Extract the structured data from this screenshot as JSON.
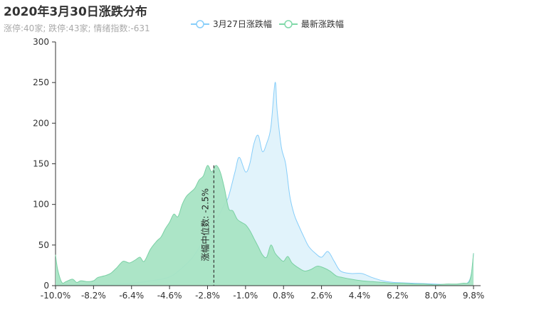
{
  "header": {
    "title": "2020年3月30日涨跌分布",
    "subtitle": "涨停:40家; 跌停:43家; 情绪指数:-631"
  },
  "legend": [
    {
      "label": "3月27日涨跌幅",
      "color": "#87cefa"
    },
    {
      "label": "最新涨跌幅",
      "color": "#7fd8a8"
    }
  ],
  "colors": {
    "prev_line": "#87cefa",
    "prev_fill": "#dff2fb",
    "latest_line": "#7ad0a4",
    "latest_fill": "#a8e4c4",
    "axis": "#333333",
    "median_line": "#333333"
  },
  "annotation": {
    "median_label": "涨幅中位数: -2.5%",
    "median_x": -2.5
  },
  "chart_data": {
    "type": "area",
    "title": "2020年3月30日涨跌分布",
    "xlabel": "",
    "ylabel": "",
    "xlim": [
      -10.0,
      10.0
    ],
    "ylim": [
      0,
      300
    ],
    "x_ticks": [
      "-10.0%",
      "-8.2%",
      "-6.4%",
      "-4.6%",
      "-2.8%",
      "-1.0%",
      "0.8%",
      "2.6%",
      "4.4%",
      "6.2%",
      "8.0%",
      "9.8%"
    ],
    "y_ticks": [
      0,
      50,
      100,
      150,
      200,
      250,
      300
    ],
    "series": [
      {
        "name": "3月27日涨跌幅",
        "x": [
          -10.0,
          -9.5,
          -9.0,
          -8.5,
          -8.0,
          -7.5,
          -7.0,
          -6.5,
          -6.0,
          -5.5,
          -5.0,
          -4.5,
          -4.0,
          -3.5,
          -3.0,
          -2.5,
          -2.0,
          -1.8,
          -1.5,
          -1.3,
          -1.0,
          -0.8,
          -0.6,
          -0.4,
          -0.2,
          0.0,
          0.2,
          0.4,
          0.5,
          0.7,
          0.9,
          1.1,
          1.3,
          1.5,
          1.8,
          2.0,
          2.3,
          2.6,
          2.9,
          3.2,
          3.5,
          4.0,
          4.5,
          5.0,
          5.5,
          6.0,
          7.0,
          8.0,
          9.0,
          9.5,
          9.7,
          9.8
        ],
        "values": [
          3,
          1,
          1,
          1,
          1,
          1,
          2,
          3,
          4,
          6,
          8,
          12,
          22,
          35,
          55,
          75,
          100,
          110,
          140,
          158,
          140,
          150,
          175,
          185,
          165,
          175,
          195,
          250,
          215,
          170,
          150,
          110,
          88,
          75,
          58,
          48,
          40,
          35,
          42,
          30,
          18,
          15,
          15,
          10,
          6,
          4,
          3,
          2,
          1,
          3,
          15,
          40
        ]
      },
      {
        "name": "最新涨跌幅",
        "x": [
          -10.0,
          -9.9,
          -9.7,
          -9.5,
          -9.2,
          -9.0,
          -8.8,
          -8.5,
          -8.2,
          -8.0,
          -7.7,
          -7.4,
          -7.1,
          -6.8,
          -6.5,
          -6.2,
          -6.0,
          -5.8,
          -5.5,
          -5.2,
          -5.0,
          -4.8,
          -4.6,
          -4.4,
          -4.2,
          -4.0,
          -3.8,
          -3.6,
          -3.4,
          -3.2,
          -3.0,
          -2.8,
          -2.6,
          -2.4,
          -2.2,
          -2.0,
          -1.8,
          -1.6,
          -1.4,
          -1.2,
          -1.0,
          -0.8,
          -0.6,
          -0.4,
          -0.2,
          0.0,
          0.2,
          0.4,
          0.6,
          0.8,
          1.0,
          1.2,
          1.5,
          1.8,
          2.1,
          2.4,
          2.7,
          3.0,
          3.3,
          3.6,
          4.0,
          4.5,
          5.0,
          5.5,
          6.0,
          6.5,
          7.0,
          7.5,
          8.0,
          8.5,
          9.0,
          9.3,
          9.5,
          9.6,
          9.7,
          9.8
        ],
        "values": [
          38,
          20,
          4,
          5,
          8,
          4,
          6,
          5,
          6,
          10,
          12,
          15,
          22,
          30,
          28,
          32,
          35,
          30,
          45,
          55,
          60,
          70,
          78,
          88,
          85,
          100,
          110,
          115,
          120,
          130,
          135,
          148,
          140,
          148,
          140,
          120,
          95,
          92,
          82,
          78,
          75,
          68,
          58,
          48,
          38,
          35,
          50,
          40,
          34,
          30,
          36,
          28,
          22,
          18,
          20,
          24,
          22,
          18,
          12,
          10,
          8,
          6,
          5,
          4,
          3,
          3,
          2,
          2,
          1,
          2,
          2,
          3,
          3,
          5,
          15,
          40
        ]
      }
    ]
  }
}
